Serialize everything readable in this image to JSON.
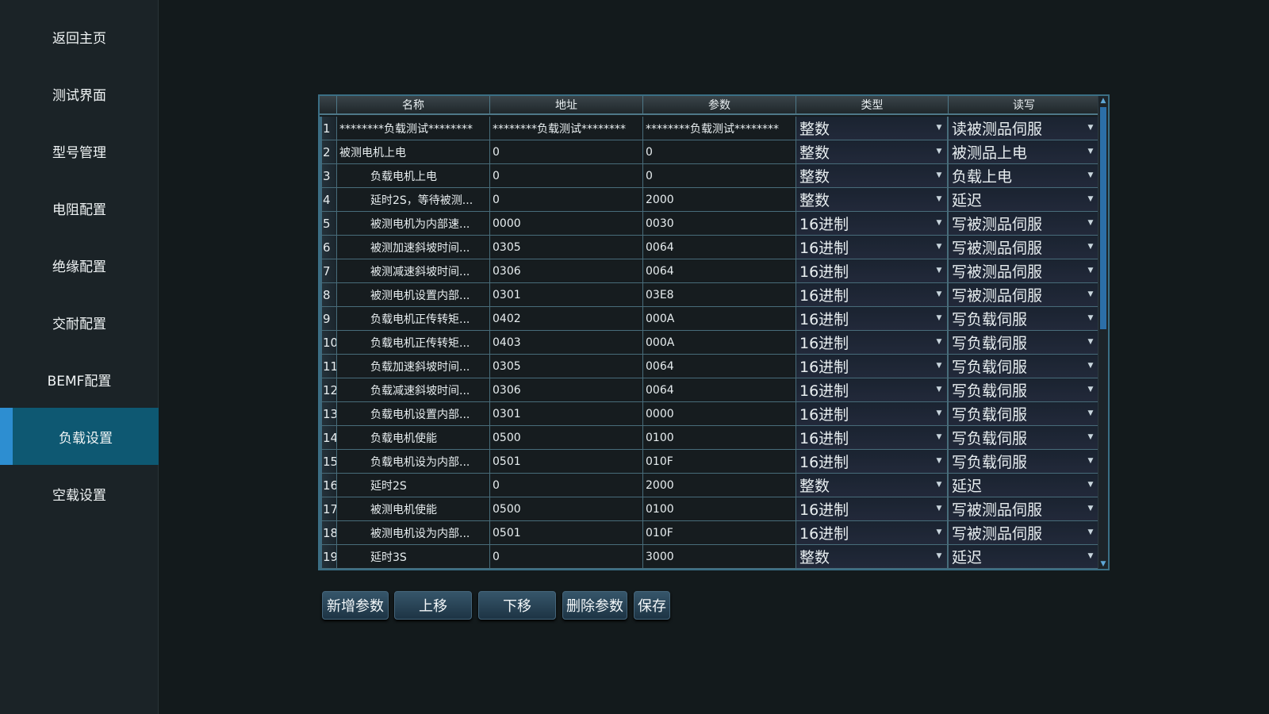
{
  "sidebar": {
    "items": [
      {
        "label": "返回主页"
      },
      {
        "label": "测试界面"
      },
      {
        "label": "型号管理"
      },
      {
        "label": "电阻配置"
      },
      {
        "label": "绝缘配置"
      },
      {
        "label": "交耐配置"
      },
      {
        "label": "BEMF配置"
      },
      {
        "label": "负载设置",
        "active": true
      },
      {
        "label": "空载设置"
      }
    ]
  },
  "table": {
    "headers": [
      "名称",
      "地址",
      "参数",
      "类型",
      "读写"
    ],
    "rows": [
      {
        "no": "1",
        "name": "********负载测试********",
        "addr": "********负载测试********",
        "param": "********负载测试********",
        "type": "整数",
        "rw": "读被测品伺服",
        "indent": false
      },
      {
        "no": "2",
        "name": "被测电机上电",
        "addr": "0",
        "param": "0",
        "type": "整数",
        "rw": "被测品上电",
        "indent": false
      },
      {
        "no": "3",
        "name": "负载电机上电",
        "addr": "0",
        "param": "0",
        "type": "整数",
        "rw": "负载上电",
        "indent": true
      },
      {
        "no": "4",
        "name": "延时2S，等待被测...",
        "addr": "0",
        "param": "2000",
        "type": "整数",
        "rw": "延迟",
        "indent": true
      },
      {
        "no": "5",
        "name": "被测电机为内部速...",
        "addr": "0000",
        "param": "0030",
        "type": "16进制",
        "rw": "写被测品伺服",
        "indent": true
      },
      {
        "no": "6",
        "name": "被测加速斜坡时间...",
        "addr": "0305",
        "param": "0064",
        "type": "16进制",
        "rw": "写被测品伺服",
        "indent": true
      },
      {
        "no": "7",
        "name": "被测减速斜坡时间...",
        "addr": "0306",
        "param": "0064",
        "type": "16进制",
        "rw": "写被测品伺服",
        "indent": true
      },
      {
        "no": "8",
        "name": "被测电机设置内部...",
        "addr": "0301",
        "param": "03E8",
        "type": "16进制",
        "rw": "写被测品伺服",
        "indent": true
      },
      {
        "no": "9",
        "name": "负载电机正传转矩...",
        "addr": "0402",
        "param": "000A",
        "type": "16进制",
        "rw": "写负载伺服",
        "indent": true
      },
      {
        "no": "10",
        "name": "负载电机正传转矩...",
        "addr": "0403",
        "param": "000A",
        "type": "16进制",
        "rw": "写负载伺服",
        "indent": true
      },
      {
        "no": "11",
        "name": "负载加速斜坡时间...",
        "addr": "0305",
        "param": "0064",
        "type": "16进制",
        "rw": "写负载伺服",
        "indent": true
      },
      {
        "no": "12",
        "name": "负载减速斜坡时间...",
        "addr": "0306",
        "param": "0064",
        "type": "16进制",
        "rw": "写负载伺服",
        "indent": true
      },
      {
        "no": "13",
        "name": "负载电机设置内部...",
        "addr": "0301",
        "param": "0000",
        "type": "16进制",
        "rw": "写负载伺服",
        "indent": true
      },
      {
        "no": "14",
        "name": "负载电机使能",
        "addr": "0500",
        "param": "0100",
        "type": "16进制",
        "rw": "写负载伺服",
        "indent": true
      },
      {
        "no": "15",
        "name": "负载电机设为内部...",
        "addr": "0501",
        "param": "010F",
        "type": "16进制",
        "rw": "写负载伺服",
        "indent": true
      },
      {
        "no": "16",
        "name": "延时2S",
        "addr": "0",
        "param": "2000",
        "type": "整数",
        "rw": "延迟",
        "indent": true
      },
      {
        "no": "17",
        "name": "被测电机使能",
        "addr": "0500",
        "param": "0100",
        "type": "16进制",
        "rw": "写被测品伺服",
        "indent": true
      },
      {
        "no": "18",
        "name": "被测电机设为内部...",
        "addr": "0501",
        "param": "010F",
        "type": "16进制",
        "rw": "写被测品伺服",
        "indent": true
      },
      {
        "no": "19",
        "name": "延时3S",
        "addr": "0",
        "param": "3000",
        "type": "整数",
        "rw": "延迟",
        "indent": true
      }
    ]
  },
  "buttons": {
    "add": "新增参数",
    "up": "上移",
    "down": "下移",
    "delete": "删除参数",
    "save": "保存"
  },
  "colors": {
    "active_nav": "#0e5872",
    "accent": "#2d8ed1"
  }
}
